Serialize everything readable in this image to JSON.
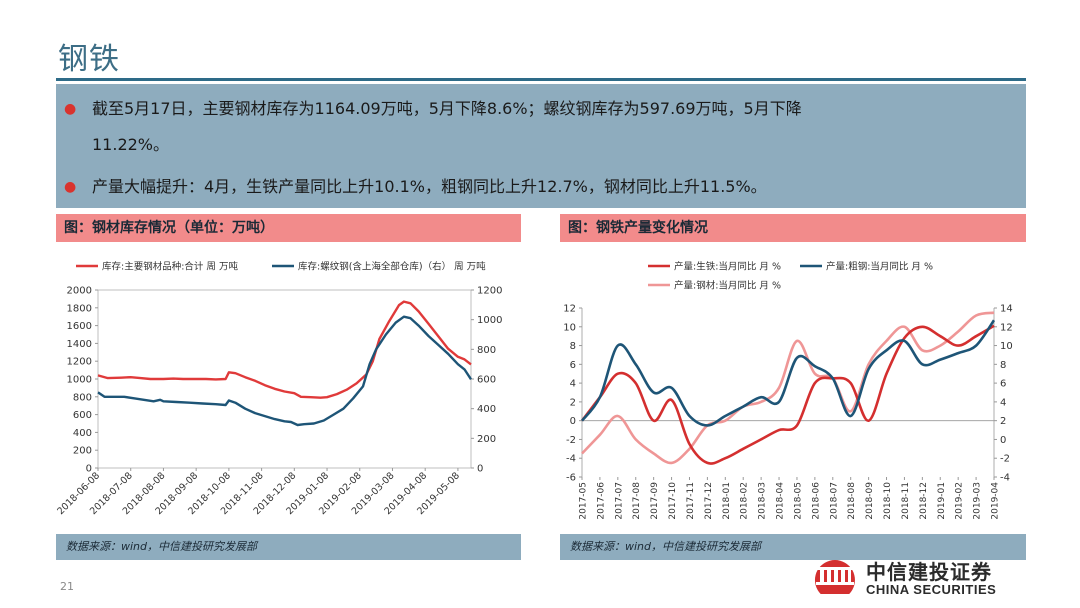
{
  "page": {
    "title": "钢铁",
    "bullets": [
      {
        "line1": "截至5月17日，主要钢材库存为1164.09万吨，5月下降8.6%；螺纹钢库存为597.69万吨，5月下降",
        "line2": "11.22%。"
      },
      {
        "line1": "产量大幅提升：4月，生铁产量同比上升10.1%，粗钢同比上升12.7%，钢材同比上升11.5%。"
      }
    ],
    "page_number": "21",
    "logo": {
      "cn": "中信建投证券",
      "en": "CHINA SECURITIES"
    }
  },
  "panels": {
    "left": {
      "title": "图：钢材库存情况（单位：万吨）",
      "source": "数据来源：wind，中信建投研究发展部"
    },
    "right": {
      "title": "图：钢铁产量变化情况",
      "source": "数据来源：wind，中信建投研究发展部"
    }
  },
  "chart_data": [
    {
      "type": "line",
      "x_tick_labels": [
        "2018-06-08",
        "2018-07-08",
        "2018-08-08",
        "2018-09-08",
        "2018-10-08",
        "2018-11-08",
        "2018-12-08",
        "2019-01-08",
        "2019-02-08",
        "2019-03-08",
        "2019-04-08",
        "2019-05-08"
      ],
      "x_range": [
        0,
        11.4
      ],
      "y_left": {
        "range": [
          0,
          2000
        ],
        "ticks": [
          0,
          200,
          400,
          600,
          800,
          1000,
          1200,
          1400,
          1600,
          1800,
          2000
        ]
      },
      "y_right": {
        "range": [
          0,
          1200
        ],
        "ticks": [
          0,
          200,
          400,
          600,
          800,
          1000,
          1200
        ]
      },
      "series": [
        {
          "name": "库存:主要钢材品种:合计 周 万吨",
          "color": "#e03a3a",
          "axis": "left",
          "points": [
            [
              0,
              1040
            ],
            [
              0.3,
              1010
            ],
            [
              0.7,
              1015
            ],
            [
              1,
              1020
            ],
            [
              1.3,
              1010
            ],
            [
              1.6,
              1000
            ],
            [
              2,
              1000
            ],
            [
              2.3,
              1005
            ],
            [
              2.6,
              1000
            ],
            [
              3,
              1000
            ],
            [
              3.3,
              1000
            ],
            [
              3.6,
              995
            ],
            [
              3.9,
              1000
            ],
            [
              4.0,
              1075
            ],
            [
              4.2,
              1065
            ],
            [
              4.5,
              1020
            ],
            [
              4.8,
              980
            ],
            [
              5.1,
              930
            ],
            [
              5.4,
              890
            ],
            [
              5.7,
              860
            ],
            [
              6.0,
              840
            ],
            [
              6.2,
              800
            ],
            [
              6.5,
              795
            ],
            [
              6.8,
              790
            ],
            [
              7.0,
              795
            ],
            [
              7.3,
              830
            ],
            [
              7.6,
              880
            ],
            [
              7.9,
              950
            ],
            [
              8.2,
              1050
            ],
            [
              8.4,
              1200
            ],
            [
              8.6,
              1450
            ],
            [
              8.9,
              1650
            ],
            [
              9.2,
              1830
            ],
            [
              9.35,
              1870
            ],
            [
              9.55,
              1850
            ],
            [
              9.8,
              1760
            ],
            [
              10.1,
              1620
            ],
            [
              10.4,
              1480
            ],
            [
              10.7,
              1340
            ],
            [
              11.0,
              1250
            ],
            [
              11.2,
              1220
            ],
            [
              11.4,
              1164
            ]
          ]
        },
        {
          "name": "库存:螺纹钢(含上海全部仓库)（右） 周 万吨",
          "color": "#1e5577",
          "axis": "right",
          "points": [
            [
              0,
              510
            ],
            [
              0.2,
              480
            ],
            [
              0.5,
              480
            ],
            [
              0.8,
              480
            ],
            [
              1.1,
              470
            ],
            [
              1.4,
              460
            ],
            [
              1.7,
              450
            ],
            [
              1.9,
              460
            ],
            [
              2.0,
              450
            ],
            [
              2.4,
              445
            ],
            [
              2.8,
              440
            ],
            [
              3.2,
              435
            ],
            [
              3.6,
              430
            ],
            [
              3.9,
              425
            ],
            [
              4.0,
              455
            ],
            [
              4.2,
              440
            ],
            [
              4.5,
              400
            ],
            [
              4.8,
              370
            ],
            [
              5.1,
              350
            ],
            [
              5.4,
              330
            ],
            [
              5.7,
              315
            ],
            [
              5.9,
              310
            ],
            [
              6.1,
              290
            ],
            [
              6.3,
              295
            ],
            [
              6.6,
              300
            ],
            [
              6.9,
              320
            ],
            [
              7.2,
              360
            ],
            [
              7.5,
              400
            ],
            [
              7.8,
              470
            ],
            [
              8.1,
              550
            ],
            [
              8.3,
              700
            ],
            [
              8.5,
              800
            ],
            [
              8.8,
              900
            ],
            [
              9.1,
              980
            ],
            [
              9.35,
              1020
            ],
            [
              9.55,
              1010
            ],
            [
              9.8,
              960
            ],
            [
              10.1,
              890
            ],
            [
              10.4,
              830
            ],
            [
              10.7,
              770
            ],
            [
              11.0,
              700
            ],
            [
              11.2,
              665
            ],
            [
              11.4,
              598
            ]
          ]
        }
      ]
    },
    {
      "type": "line",
      "x_tick_labels": [
        "2017-05",
        "2017-06",
        "2017-07",
        "2017-08",
        "2017-09",
        "2017-10",
        "2017-11",
        "2017-12",
        "2018-01",
        "2018-02",
        "2018-03",
        "2018-04",
        "2018-05",
        "2018-06",
        "2018-07",
        "2018-08",
        "2018-09",
        "2018-10",
        "2018-11",
        "2018-12",
        "2019-01",
        "2019-02",
        "2019-03",
        "2019-04"
      ],
      "y_left": {
        "range": [
          -6,
          12
        ],
        "ticks": [
          -6,
          -4,
          -2,
          0,
          2,
          4,
          6,
          8,
          10,
          12
        ]
      },
      "y_right": {
        "range": [
          -4,
          14
        ],
        "ticks": [
          -4,
          -2,
          0,
          2,
          4,
          6,
          8,
          10,
          12,
          14
        ]
      },
      "series": [
        {
          "name": "产量:生铁:当月同比 月 %",
          "color": "#d42f2f",
          "axis": "left",
          "values": [
            0,
            2.5,
            5,
            4,
            0,
            2.2,
            -2.5,
            -4.5,
            -4,
            -3,
            -2,
            -1,
            -0.5,
            4,
            4.5,
            4,
            0,
            5,
            8.8,
            10,
            9,
            8,
            9,
            10.1
          ]
        },
        {
          "name": "产量:粗钢:当月同比 月 %",
          "color": "#1e5577",
          "axis": "right",
          "values": [
            2,
            4.5,
            10,
            8,
            5,
            5.5,
            2.5,
            1.5,
            2.5,
            3.5,
            4.5,
            4,
            8.7,
            7.8,
            6.5,
            2.5,
            7.5,
            9.5,
            10.5,
            8,
            8.5,
            9.2,
            10,
            12.7
          ]
        },
        {
          "name": "产量:钢材:当月同比 月 %",
          "color": "#ef9696",
          "axis": "left",
          "values": [
            -3.5,
            -1.5,
            0.5,
            -2,
            -3.5,
            -4.5,
            -3,
            -0.5,
            0,
            1.5,
            2,
            3.5,
            8.5,
            5,
            4.5,
            1,
            6,
            8.5,
            10,
            7.5,
            8,
            9.5,
            11.2,
            11.5
          ]
        }
      ]
    }
  ]
}
